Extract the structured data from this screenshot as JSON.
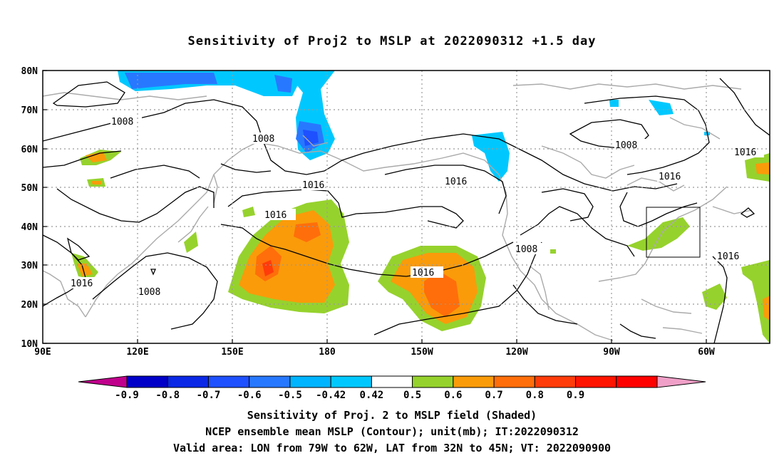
{
  "title": "Sensitivity of Proj2 to MSLP at 2022090312 +1.5 day",
  "map": {
    "lat_labels": [
      "80N",
      "70N",
      "60N",
      "50N",
      "40N",
      "30N",
      "20N",
      "10N"
    ],
    "lon_labels": [
      "90E",
      "120E",
      "150E",
      "180",
      "150W",
      "120W",
      "90W",
      "60W"
    ],
    "contour_labels": [
      "1008",
      "1008",
      "1008",
      "1008",
      "1008",
      "1016",
      "1016",
      "1016",
      "1016",
      "1016",
      "1016",
      "1016"
    ],
    "valid_area": {
      "lon_min": "79W",
      "lon_max": "62W",
      "lat_min": "32N",
      "lat_max": "45N"
    }
  },
  "colorbar": {
    "labels": [
      "-0.9",
      "-0.8",
      "-0.7",
      "-0.6",
      "-0.5",
      "-0.42",
      "0.42",
      "0.5",
      "0.6",
      "0.7",
      "0.8",
      "0.9"
    ],
    "colors": [
      "#c0008c",
      "#0000c8",
      "#0a28e6",
      "#1e50ff",
      "#2878ff",
      "#00b4ff",
      "#00c8ff",
      "#ffffff",
      "#96d22d",
      "#fa9b0a",
      "#ff6e0a",
      "#ff3c0a",
      "#ff1400",
      "#ff0000",
      "#f0a0c8"
    ]
  },
  "captions": [
    "Sensitivity of Proj. 2 to MSLP field (Shaded)",
    "NCEP ensemble mean MSLP (Contour); unit(mb); IT:2022090312",
    "Valid area: LON from 79W to 62W, LAT from 32N to 45N; VT: 2022090900"
  ]
}
